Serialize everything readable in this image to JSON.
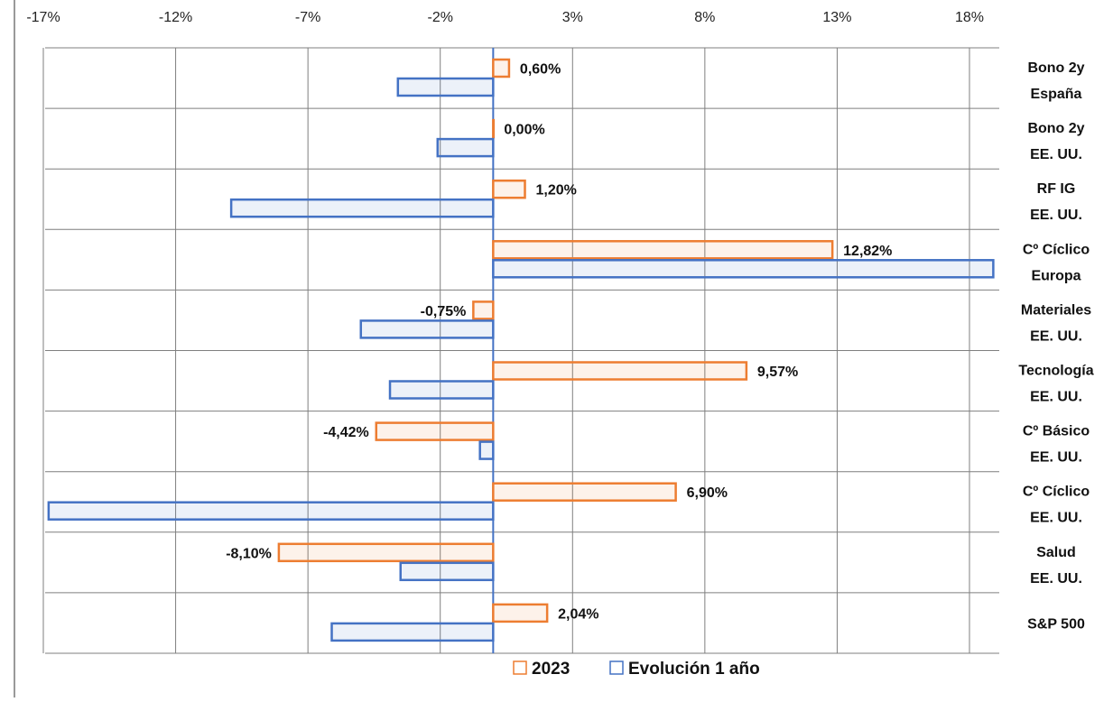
{
  "chart_data": {
    "type": "bar",
    "orientation": "horizontal",
    "categories": [
      [
        "Bono 2y",
        "España"
      ],
      [
        "Bono 2y",
        "EE. UU."
      ],
      [
        "RF IG",
        "EE. UU."
      ],
      [
        "Cº Cíclico",
        "Europa"
      ],
      [
        "Materiales",
        "EE. UU."
      ],
      [
        "Tecnología",
        "EE. UU."
      ],
      [
        "Cº Básico",
        "EE. UU."
      ],
      [
        "Cº Cíclico",
        "EE. UU."
      ],
      [
        "Salud",
        "EE. UU."
      ],
      [
        "S&P 500"
      ]
    ],
    "series": [
      {
        "name": "2023",
        "color": "#ED7D31",
        "values": [
          0.6,
          0.0,
          1.2,
          12.82,
          -0.75,
          9.57,
          -4.42,
          6.9,
          -8.1,
          2.04
        ],
        "labels": [
          "0,60%",
          "0,00%",
          "1,20%",
          "12,82%",
          "-0,75%",
          "9,57%",
          "-4,42%",
          "6,90%",
          "-8,10%",
          "2,04%"
        ]
      },
      {
        "name": "Evolución 1 año",
        "color": "#4472C4",
        "values": [
          -3.6,
          -2.1,
          -9.9,
          18.9,
          -5.0,
          -3.9,
          -0.5,
          -16.8,
          -3.5,
          -6.1
        ]
      }
    ],
    "x_ticks": [
      -17,
      -12,
      -7,
      -2,
      3,
      8,
      13,
      18
    ],
    "x_tick_labels": [
      "-17%",
      "-12%",
      "-7%",
      "-2%",
      "3%",
      "8%",
      "13%",
      "18%"
    ],
    "xlim": [
      -17,
      18.9
    ],
    "grid": true,
    "legend_position": "bottom"
  }
}
